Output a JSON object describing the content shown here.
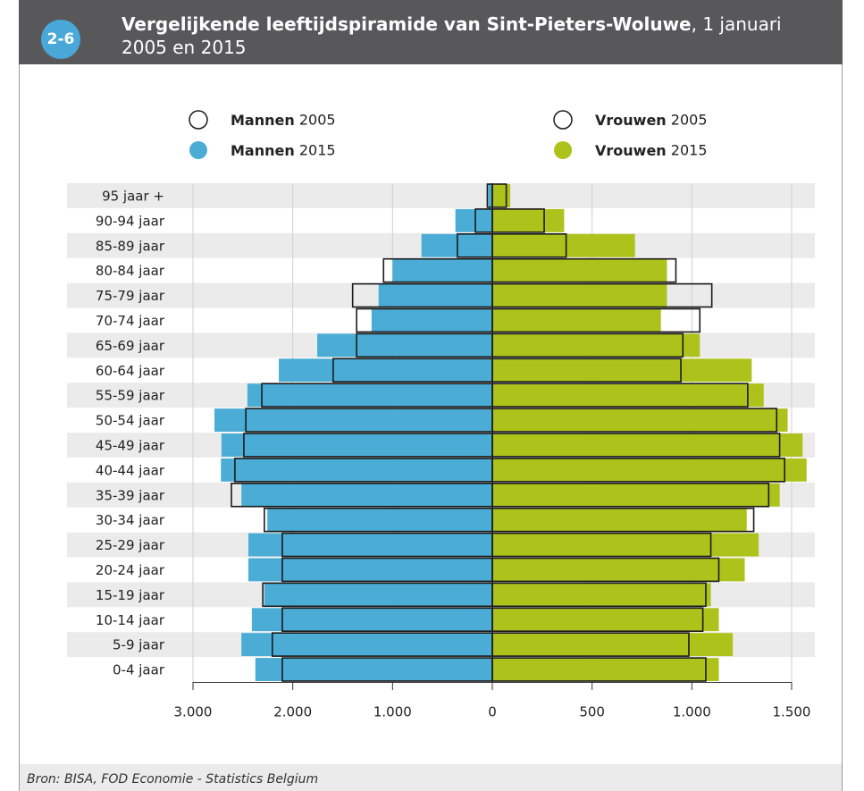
{
  "header": {
    "badge": "2-6",
    "title_bold": "Vergelijkende leeftijdspiramide van Sint-Pieters-Woluwe",
    "title_rest": ", 1 januari 2005 en 2015"
  },
  "chart_data": {
    "type": "bar",
    "orientation": "horizontal-pyramid",
    "categories": [
      "95 jaar +",
      "90-94 jaar",
      "85-89 jaar",
      "80-84 jaar",
      "75-79 jaar",
      "70-74 jaar",
      "65-69 jaar",
      "60-64 jaar",
      "55-59 jaar",
      "50-54 jaar",
      "45-49 jaar",
      "40-44 jaar",
      "35-39 jaar",
      "30-34 jaar",
      "25-29 jaar",
      "20-24 jaar",
      "15-19 jaar",
      "10-14 jaar",
      "5-9 jaar",
      "0-4 jaar"
    ],
    "xlim": [
      0,
      3000
    ],
    "xticks": [
      {
        "value": 3000,
        "label": "3.000"
      },
      {
        "value": 2000,
        "label": "2.000"
      },
      {
        "value": 1000,
        "label": "1.000"
      },
      0
    ],
    "x2lim": [
      0,
      1500
    ],
    "x2ticks": [
      500,
      {
        "value": 1000,
        "label": "1.000"
      },
      {
        "value": 1500,
        "label": "1.500"
      }
    ],
    "series": [
      {
        "name": "Mannen 2015",
        "color": "#4badd6",
        "outline": false,
        "axis": "x",
        "values": [
          40,
          370,
          710,
          1000,
          1140,
          1210,
          1755,
          2140,
          2455,
          2785,
          2715,
          2720,
          2515,
          2255,
          2445,
          2445,
          2285,
          2410,
          2515,
          2375
        ]
      },
      {
        "name": "Vrouwen 2015",
        "color": "#adc21a",
        "outline": false,
        "axis": "x2",
        "values": [
          90,
          360,
          715,
          875,
          875,
          845,
          1040,
          1300,
          1360,
          1480,
          1555,
          1575,
          1440,
          1275,
          1335,
          1265,
          1095,
          1135,
          1205,
          1135
        ]
      },
      {
        "name": "Mannen 2005",
        "color": "#1a1a1a",
        "outline": true,
        "axis": "x",
        "values": [
          50,
          170,
          350,
          1090,
          1400,
          1360,
          1360,
          1595,
          2310,
          2470,
          2490,
          2580,
          2615,
          2285,
          2105,
          2105,
          2300,
          2105,
          2205,
          2105
        ]
      },
      {
        "name": "Vrouwen 2005",
        "color": "#1a1a1a",
        "outline": true,
        "axis": "x2",
        "values": [
          70,
          260,
          370,
          920,
          1100,
          1040,
          955,
          945,
          1280,
          1425,
          1440,
          1465,
          1385,
          1310,
          1095,
          1135,
          1070,
          1055,
          985,
          1070
        ]
      }
    ],
    "grid": true
  },
  "footer": {
    "source": "Bron: BISA, FOD Economie - Statistics Belgium"
  }
}
